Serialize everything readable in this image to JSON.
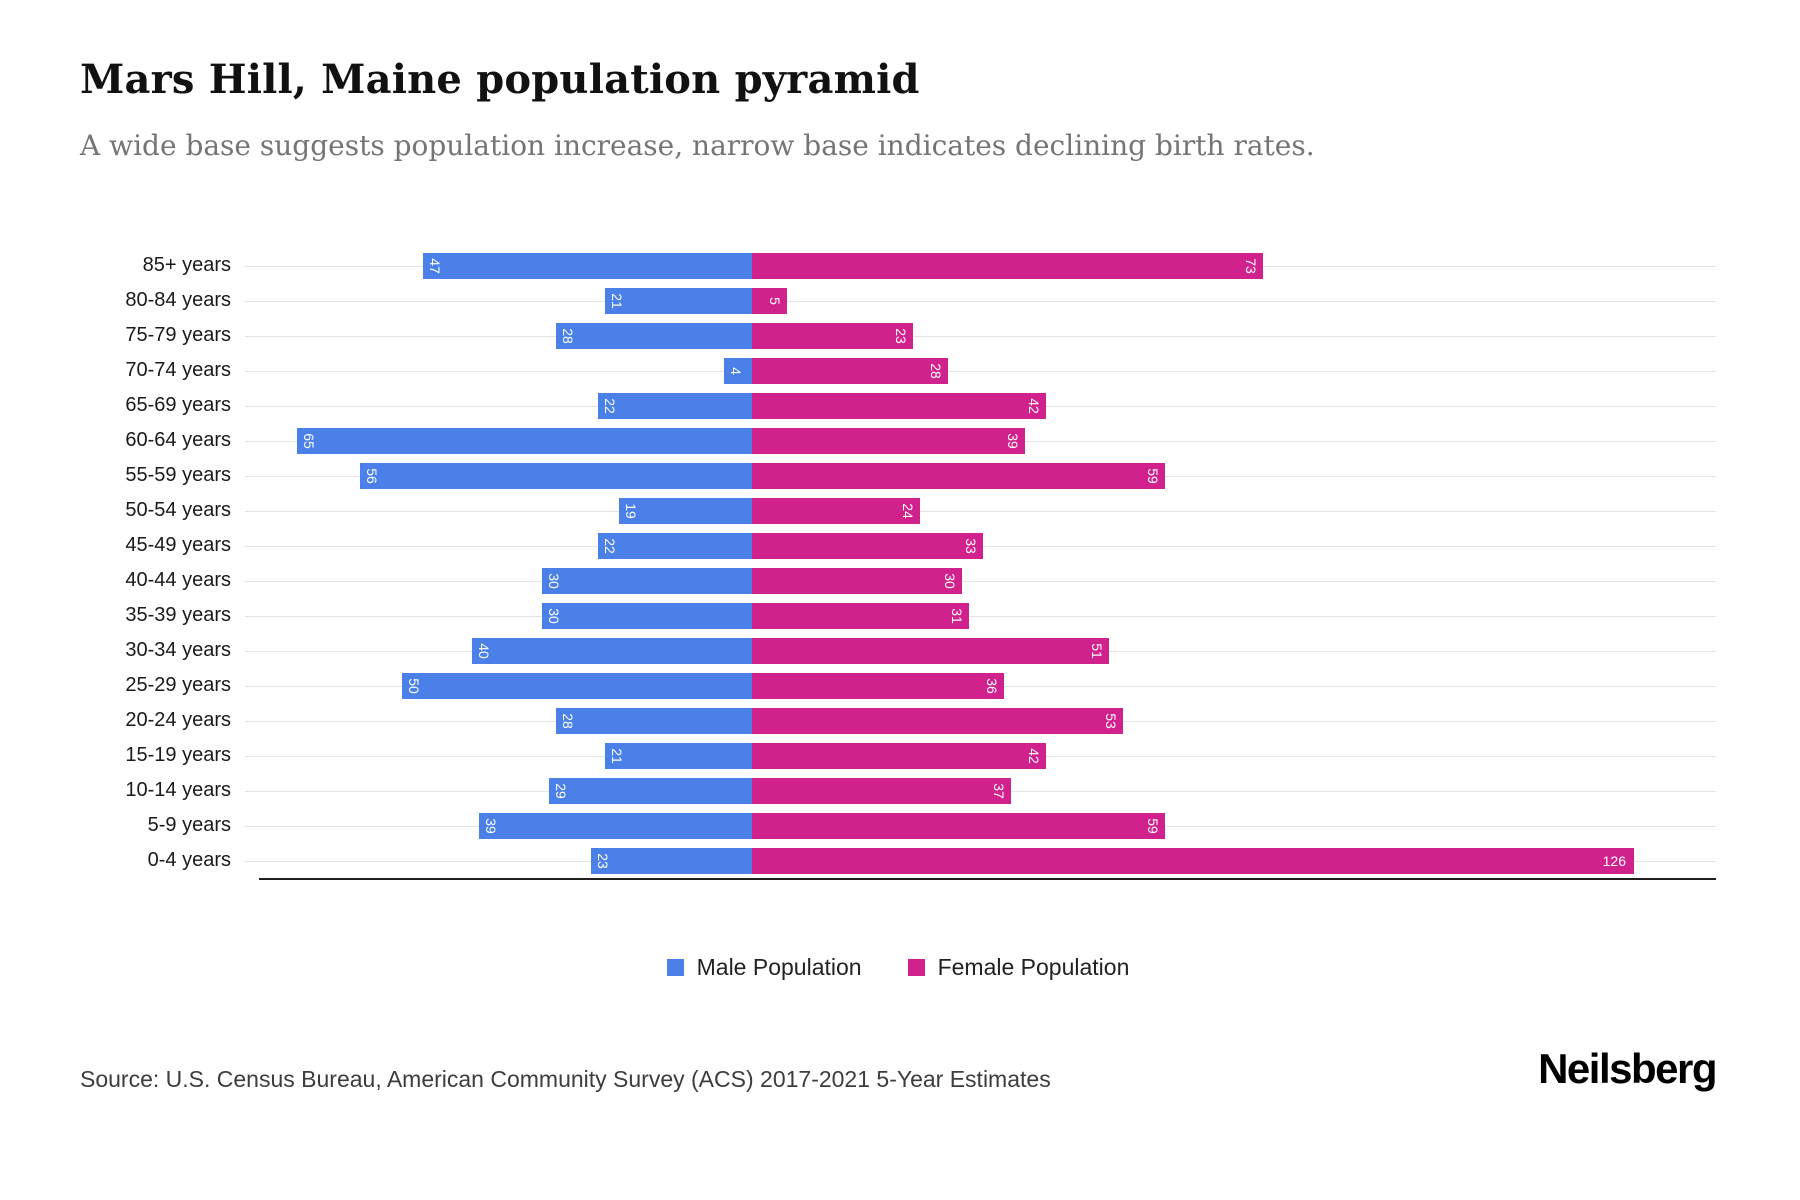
{
  "header": {
    "title": "Mars Hill, Maine population pyramid",
    "subtitle": "A wide base suggests population increase, narrow base indicates declining birth rates."
  },
  "chart_data": {
    "type": "bar",
    "variant": "population-pyramid",
    "orientation": "horizontal",
    "categories": [
      "85+ years",
      "80-84 years",
      "75-79 years",
      "70-74 years",
      "65-69 years",
      "60-64 years",
      "55-59 years",
      "50-54 years",
      "45-49 years",
      "40-44 years",
      "35-39 years",
      "30-34 years",
      "25-29 years",
      "20-24 years",
      "15-19 years",
      "10-14 years",
      "5-9 years",
      "0-4 years"
    ],
    "series": [
      {
        "name": "Male Population",
        "color": "#4a80e8",
        "values": [
          47,
          21,
          28,
          4,
          22,
          65,
          56,
          19,
          22,
          30,
          30,
          40,
          50,
          28,
          21,
          29,
          39,
          23
        ]
      },
      {
        "name": "Female Population",
        "color": "#d1218c",
        "values": [
          73,
          5,
          23,
          28,
          42,
          39,
          59,
          24,
          33,
          30,
          31,
          51,
          36,
          53,
          42,
          37,
          59,
          126
        ]
      }
    ],
    "value_labels": "inside-bar-end, white, rotated 90deg (horizontal when >= 100)",
    "male_axis_max": 72,
    "female_axis_max": 136,
    "grid": "horizontal row lines",
    "legend_position": "bottom-center"
  },
  "footer": {
    "source": "Source: U.S. Census Bureau, American Community Survey (ACS) 2017-2021 5-Year Estimates",
    "brand": "Neilsberg"
  }
}
